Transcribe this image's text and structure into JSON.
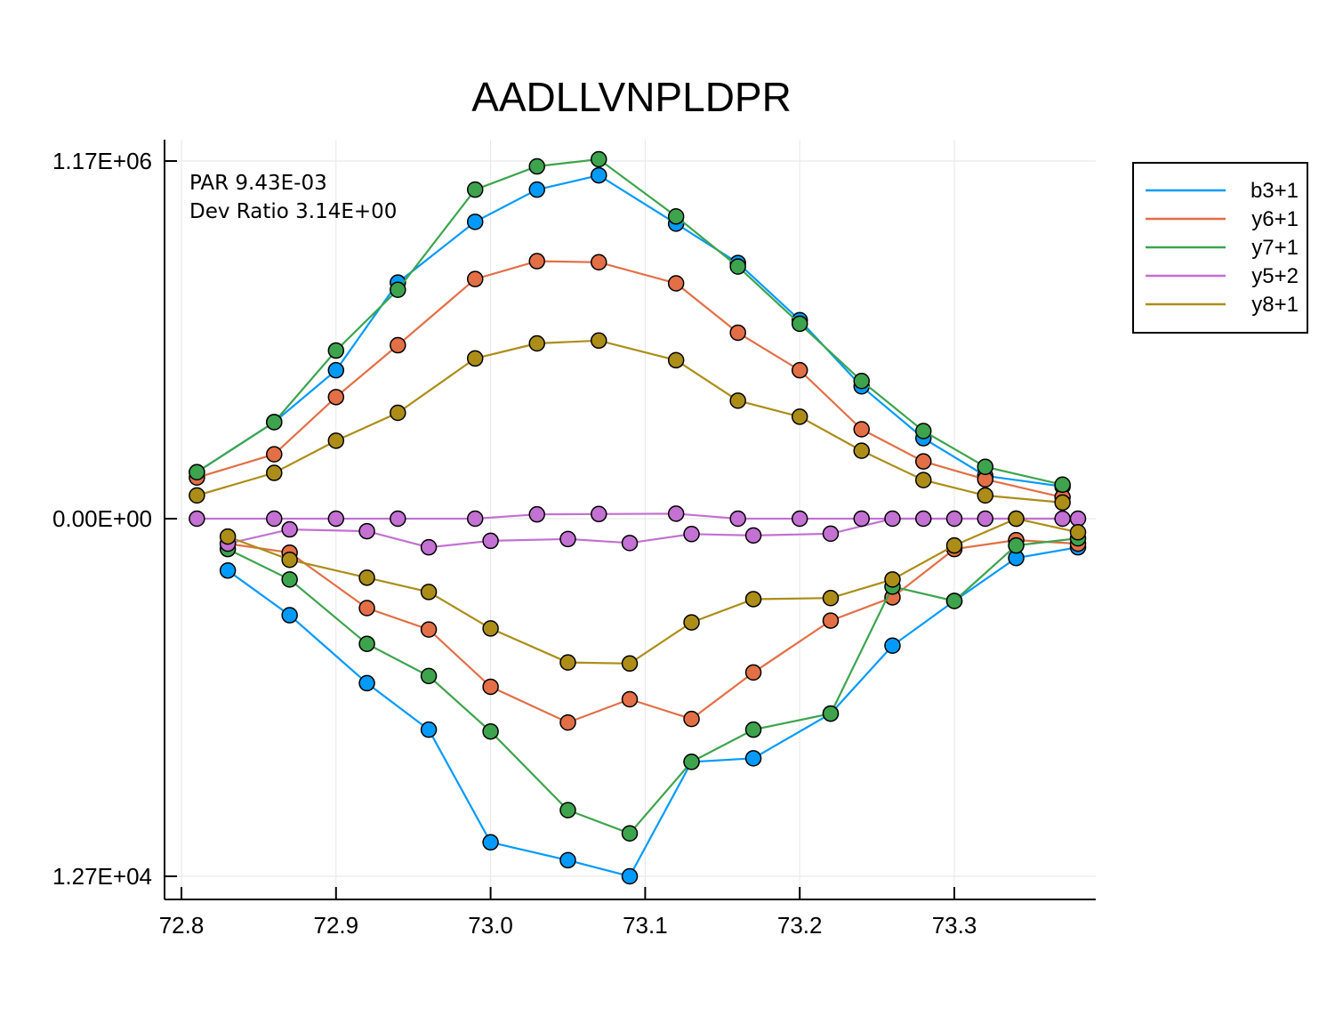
{
  "chart_data": {
    "type": "line",
    "title": "AADLLVNPLDPR",
    "xlabel": "",
    "ylabel": "",
    "xlim": [
      72.79,
      73.39
    ],
    "x_ticks": [
      72.8,
      72.9,
      73.0,
      73.1,
      73.2,
      73.3
    ],
    "x_tick_labels": [
      "72.8",
      "72.9",
      "73.0",
      "73.1",
      "73.2",
      "73.3"
    ],
    "y_ticks": [
      1.0,
      0.0,
      -1.0
    ],
    "y_tick_labels": [
      "1.17E+06",
      "0.00E+00",
      "1.27E+04"
    ],
    "y_note": "mirror plot: upper half normalized to 1.17E+06, lower half normalized to 1.27E+04",
    "annotations": [
      "PAR 9.43E-03",
      "Dev Ratio 3.14E+00"
    ],
    "grid": true,
    "legend_position": "top-right",
    "markers": true,
    "series": [
      {
        "name": "b3+1",
        "color": "#009AFA",
        "upper": {
          "x": [
            72.81,
            72.86,
            72.9,
            72.94,
            72.99,
            73.03,
            73.07,
            73.12,
            73.16,
            73.2,
            73.24,
            73.28,
            73.32,
            73.37
          ],
          "y": [
            0.13,
            0.27,
            0.415,
            0.66,
            0.83,
            0.92,
            0.96,
            0.825,
            0.715,
            0.555,
            0.37,
            0.225,
            0.12,
            0.09
          ]
        },
        "lower": {
          "x": [
            72.83,
            72.87,
            72.92,
            72.96,
            73.0,
            73.05,
            73.09,
            73.13,
            73.17,
            73.22,
            73.26,
            73.3,
            73.34,
            73.38
          ],
          "y": [
            -0.145,
            -0.27,
            -0.46,
            -0.59,
            -0.905,
            -0.955,
            -1.0,
            -0.68,
            -0.67,
            -0.545,
            -0.355,
            -0.23,
            -0.11,
            -0.08
          ]
        }
      },
      {
        "name": "y6+1",
        "color": "#E26F46",
        "upper": {
          "x": [
            72.81,
            72.86,
            72.9,
            72.94,
            72.99,
            73.03,
            73.07,
            73.12,
            73.16,
            73.2,
            73.24,
            73.28,
            73.32,
            73.37
          ],
          "y": [
            0.115,
            0.18,
            0.34,
            0.485,
            0.67,
            0.72,
            0.717,
            0.658,
            0.52,
            0.415,
            0.25,
            0.16,
            0.11,
            0.06
          ]
        },
        "lower": {
          "x": [
            72.83,
            72.87,
            72.92,
            72.96,
            73.0,
            73.05,
            73.09,
            73.13,
            73.17,
            73.22,
            73.26,
            73.3,
            73.34,
            73.38
          ],
          "y": [
            -0.07,
            -0.095,
            -0.25,
            -0.31,
            -0.47,
            -0.57,
            -0.505,
            -0.56,
            -0.43,
            -0.285,
            -0.22,
            -0.085,
            -0.06,
            -0.07
          ]
        }
      },
      {
        "name": "y7+1",
        "color": "#3DA44D",
        "upper": {
          "x": [
            72.81,
            72.86,
            72.9,
            72.94,
            72.99,
            73.03,
            73.07,
            73.12,
            73.16,
            73.2,
            73.24,
            73.28,
            73.32,
            73.37
          ],
          "y": [
            0.13,
            0.27,
            0.47,
            0.64,
            0.92,
            0.985,
            1.005,
            0.845,
            0.705,
            0.545,
            0.385,
            0.245,
            0.145,
            0.095
          ]
        },
        "lower": {
          "x": [
            72.83,
            72.87,
            72.92,
            72.96,
            73.0,
            73.05,
            73.09,
            73.13,
            73.17,
            73.22,
            73.26,
            73.3,
            73.34,
            73.38
          ],
          "y": [
            -0.085,
            -0.17,
            -0.35,
            -0.44,
            -0.595,
            -0.815,
            -0.88,
            -0.68,
            -0.59,
            -0.545,
            -0.19,
            -0.23,
            -0.075,
            -0.055
          ]
        }
      },
      {
        "name": "y5+2",
        "color": "#C371D2",
        "upper": {
          "x": [
            72.81,
            72.86,
            72.9,
            72.94,
            72.99,
            73.03,
            73.07,
            73.12,
            73.16,
            73.2,
            73.24,
            73.28,
            73.32,
            73.37
          ],
          "y": [
            0.0,
            0.0,
            0.0,
            0.0,
            0.0,
            0.012,
            0.013,
            0.014,
            0.0,
            0.0,
            0.0,
            0.0,
            0.0,
            0.0
          ]
        },
        "lower": {
          "x": [
            72.83,
            72.87,
            72.92,
            72.96,
            73.0,
            73.05,
            73.09,
            73.13,
            73.17,
            73.22,
            73.26,
            73.3,
            73.34,
            73.38
          ],
          "y": [
            -0.07,
            -0.03,
            -0.035,
            -0.08,
            -0.062,
            -0.057,
            -0.068,
            -0.043,
            -0.047,
            -0.042,
            0.0,
            0.0,
            0.0,
            0.0
          ]
        }
      },
      {
        "name": "y8+1",
        "color": "#AC8D18",
        "upper": {
          "x": [
            72.81,
            72.86,
            72.9,
            72.94,
            72.99,
            73.03,
            73.07,
            73.12,
            73.16,
            73.2,
            73.24,
            73.28,
            73.32,
            73.37
          ],
          "y": [
            0.065,
            0.128,
            0.218,
            0.296,
            0.448,
            0.49,
            0.498,
            0.443,
            0.33,
            0.285,
            0.19,
            0.108,
            0.065,
            0.045
          ]
        },
        "lower": {
          "x": [
            72.83,
            72.87,
            72.92,
            72.96,
            73.0,
            73.05,
            73.09,
            73.13,
            73.17,
            73.22,
            73.26,
            73.3,
            73.34,
            73.38
          ],
          "y": [
            -0.05,
            -0.115,
            -0.165,
            -0.205,
            -0.307,
            -0.402,
            -0.405,
            -0.29,
            -0.225,
            -0.222,
            -0.17,
            -0.075,
            0.0,
            -0.038
          ]
        }
      }
    ]
  }
}
